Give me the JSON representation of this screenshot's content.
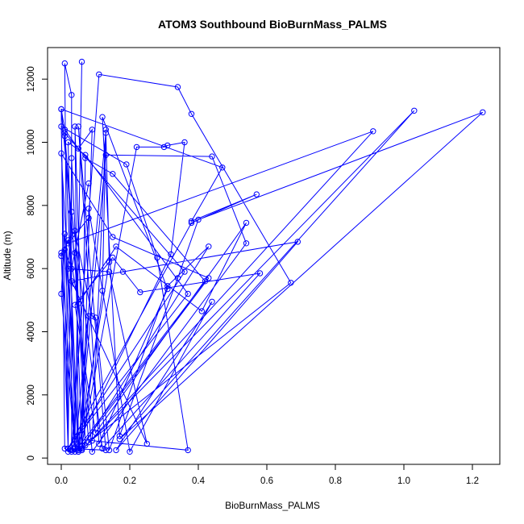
{
  "chart_data": {
    "type": "scatter",
    "title": "ATOM3 Southbound BioBurnMass_PALMS",
    "xlabel": "BioBurnMass_PALMS",
    "ylabel": "Altitude (m)",
    "xlim": [
      -0.04,
      1.28
    ],
    "ylim": [
      -200,
      13000
    ],
    "xticks": [
      0.0,
      0.2,
      0.4,
      0.6,
      0.8,
      1.0,
      1.2
    ],
    "xtick_labels": [
      "0.0",
      "0.2",
      "0.4",
      "0.6",
      "0.8",
      "1.0",
      "1.2"
    ],
    "yticks": [
      0,
      2000,
      4000,
      6000,
      8000,
      10000,
      12000
    ],
    "ytick_labels": [
      "0",
      "2000",
      "4000",
      "6000",
      "8000",
      "10000",
      "12000"
    ],
    "grid": false,
    "color": "#0000ff",
    "marker": "open-circle",
    "connected": true,
    "points": [
      [
        0.06,
        12550
      ],
      [
        0.04,
        550
      ],
      [
        0.03,
        200
      ],
      [
        0.01,
        300
      ],
      [
        0.0,
        11050
      ],
      [
        0.01,
        10400
      ],
      [
        0.05,
        9800
      ],
      [
        0.09,
        10400
      ],
      [
        0.06,
        250
      ],
      [
        0.02,
        200
      ],
      [
        0.01,
        12500
      ],
      [
        0.03,
        11500
      ],
      [
        0.03,
        250
      ],
      [
        0.11,
        12150
      ],
      [
        0.34,
        11750
      ],
      [
        0.38,
        10900
      ],
      [
        0.67,
        5550
      ],
      [
        0.08,
        500
      ],
      [
        0.01,
        10300
      ],
      [
        0.36,
        5900
      ],
      [
        0.04,
        600
      ],
      [
        0.02,
        10000
      ],
      [
        0.07,
        9600
      ],
      [
        0.37,
        5200
      ],
      [
        0.02,
        300
      ],
      [
        0.0,
        10500
      ],
      [
        0.19,
        9300
      ],
      [
        0.28,
        6350
      ],
      [
        0.37,
        250
      ],
      [
        0.09,
        550
      ],
      [
        0.13,
        10400
      ],
      [
        0.12,
        5300
      ],
      [
        0.06,
        300
      ],
      [
        0.07,
        9500
      ],
      [
        0.15,
        9000
      ],
      [
        0.42,
        5600
      ],
      [
        0.04,
        200
      ],
      [
        0.13,
        10300
      ],
      [
        0.14,
        6200
      ],
      [
        0.05,
        200
      ],
      [
        0.0,
        9650
      ],
      [
        0.15,
        7000
      ],
      [
        0.43,
        5700
      ],
      [
        0.06,
        400
      ],
      [
        0.22,
        9850
      ],
      [
        0.3,
        9850
      ],
      [
        0.31,
        9900
      ],
      [
        0.36,
        10000
      ],
      [
        0.32,
        6450
      ],
      [
        0.04,
        300
      ],
      [
        0.0,
        5200
      ],
      [
        0.01,
        7100
      ],
      [
        0.05,
        300
      ],
      [
        0.13,
        9600
      ],
      [
        0.44,
        9550
      ],
      [
        0.54,
        6800
      ],
      [
        0.09,
        200
      ],
      [
        0.0,
        11050
      ],
      [
        0.47,
        9200
      ],
      [
        0.38,
        7500
      ],
      [
        0.57,
        8350
      ],
      [
        0.38,
        7450
      ],
      [
        0.02,
        300
      ],
      [
        0.0,
        6500
      ],
      [
        0.04,
        7200
      ],
      [
        0.09,
        4500
      ],
      [
        0.1,
        4450
      ],
      [
        0.14,
        250
      ],
      [
        0.31,
        5450
      ],
      [
        0.43,
        6700
      ],
      [
        0.06,
        300
      ],
      [
        0.04,
        6500
      ],
      [
        0.08,
        8700
      ],
      [
        0.03,
        6000
      ],
      [
        0.01,
        6600
      ],
      [
        0.04,
        350
      ],
      [
        0.0,
        6400
      ],
      [
        0.02,
        6900
      ],
      [
        0.04,
        5500
      ],
      [
        0.05,
        4900
      ],
      [
        0.16,
        6700
      ],
      [
        0.41,
        4650
      ],
      [
        0.54,
        7450
      ],
      [
        0.1,
        800
      ],
      [
        0.04,
        4850
      ],
      [
        0.15,
        6350
      ],
      [
        0.23,
        5250
      ],
      [
        0.58,
        5850
      ],
      [
        0.12,
        300
      ],
      [
        0.03,
        7800
      ],
      [
        0.02,
        6000
      ],
      [
        0.14,
        5900
      ],
      [
        0.25,
        450
      ],
      [
        0.03,
        5600
      ],
      [
        0.18,
        5900
      ],
      [
        0.69,
        6850
      ],
      [
        0.16,
        250
      ],
      [
        0.44,
        4950
      ],
      [
        0.2,
        200
      ],
      [
        0.08,
        7900
      ],
      [
        0.08,
        7600
      ],
      [
        0.02,
        6800
      ],
      [
        0.91,
        10350
      ],
      [
        0.06,
        250
      ],
      [
        1.03,
        11000
      ],
      [
        0.17,
        600
      ],
      [
        1.23,
        10950
      ],
      [
        0.4,
        7550
      ],
      [
        0.34,
        5700
      ],
      [
        0.17,
        700
      ],
      [
        0.12,
        10800
      ],
      [
        0.31,
        5350
      ],
      [
        0.11,
        450
      ],
      [
        0.05,
        10500
      ],
      [
        0.13,
        250
      ],
      [
        0.02,
        300
      ],
      [
        0.03,
        9500
      ],
      [
        0.07,
        400
      ],
      [
        0.04,
        10500
      ],
      [
        0.05,
        250
      ],
      [
        0.08,
        4500
      ],
      [
        0.05,
        200
      ],
      [
        0.01,
        10200
      ],
      [
        0.05,
        300
      ]
    ]
  }
}
